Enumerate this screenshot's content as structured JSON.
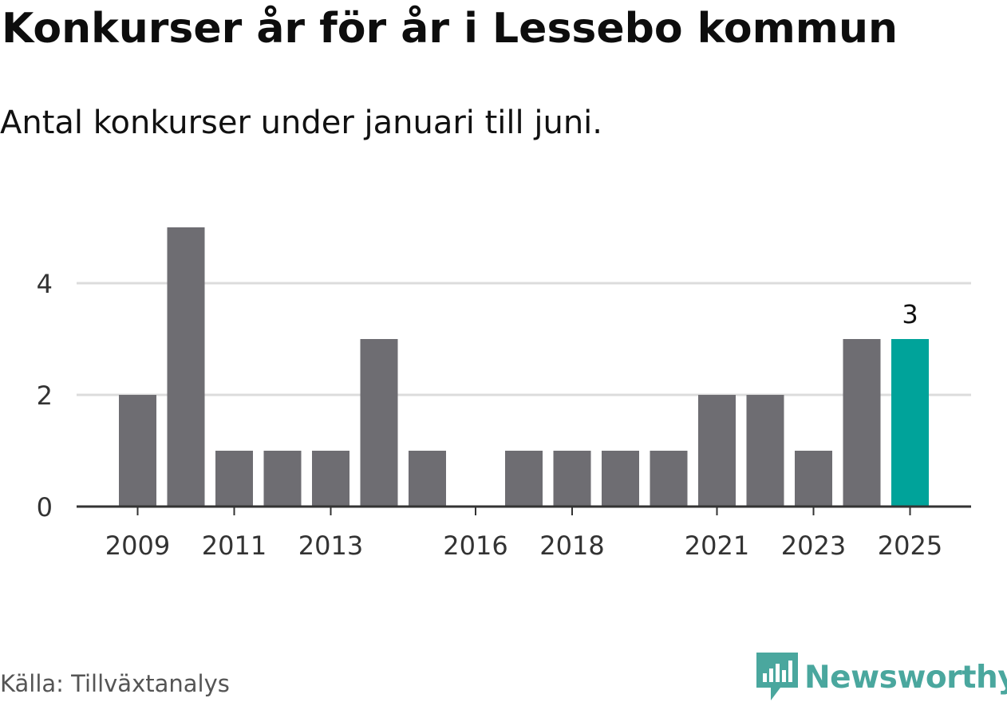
{
  "header": {
    "title": "Konkurser år för år i Lessebo kommun",
    "subtitle": "Antal konkurser under januari till juni."
  },
  "footer": {
    "source": "Källa: Tillväxtanalys",
    "brand": "Newsworthy"
  },
  "colors": {
    "bar": "#6e6d72",
    "highlight": "#00a39a",
    "grid": "#dcdcdc",
    "axis": "#333333",
    "brand": "#4aa79e"
  },
  "chart_data": {
    "type": "bar",
    "categories": [
      "2009",
      "2010",
      "2011",
      "2012",
      "2013",
      "2014",
      "2015",
      "2016",
      "2017",
      "2018",
      "2019",
      "2020",
      "2021",
      "2022",
      "2023",
      "2024",
      "2025"
    ],
    "values": [
      2,
      5,
      1,
      1,
      1,
      3,
      1,
      0,
      1,
      1,
      1,
      1,
      2,
      2,
      1,
      3,
      3
    ],
    "x_tick_labels": [
      "2009",
      "2011",
      "2013",
      "2016",
      "2018",
      "2021",
      "2023",
      "2025"
    ],
    "y_ticks": [
      0,
      2,
      4
    ],
    "ylim": [
      0,
      5
    ],
    "highlight_category": "2025",
    "highlight_label": "3",
    "grid": true,
    "title": "Konkurser år för år i Lessebo kommun",
    "subtitle": "Antal konkurser under januari till juni.",
    "xlabel": "",
    "ylabel": ""
  }
}
